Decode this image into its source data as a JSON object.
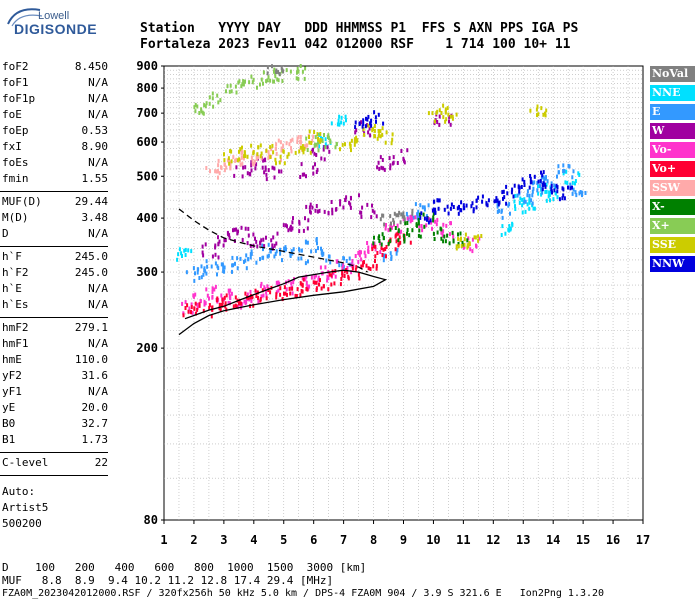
{
  "logo": {
    "brand_top": "Lowell",
    "brand_main": "DIGISONDE"
  },
  "header": {
    "line1": "Station   YYYY DAY   DDD HHMMSS P1  FFS S AXN PPS IGA PS",
    "line2": "Fortaleza 2023 Fev11 042 012000 RSF    1 714 100 10+ 11"
  },
  "params_group1": [
    {
      "name": "foF2",
      "value": "8.450"
    },
    {
      "name": "foF1",
      "value": "N/A"
    },
    {
      "name": "foF1p",
      "value": "N/A"
    },
    {
      "name": "foE",
      "value": "N/A"
    },
    {
      "name": "foEp",
      "value": "0.53"
    },
    {
      "name": "fxI",
      "value": "8.90"
    },
    {
      "name": "foEs",
      "value": "N/A"
    },
    {
      "name": "fmin",
      "value": "1.55"
    }
  ],
  "params_group2": [
    {
      "name": "MUF(D)",
      "value": "29.44"
    },
    {
      "name": "M(D)",
      "value": "3.48"
    },
    {
      "name": "D",
      "value": "N/A"
    }
  ],
  "params_group3": [
    {
      "name": "h`F",
      "value": "245.0"
    },
    {
      "name": "h`F2",
      "value": "245.0"
    },
    {
      "name": "h`E",
      "value": "N/A"
    },
    {
      "name": "h`Es",
      "value": "N/A"
    }
  ],
  "params_group4": [
    {
      "name": "hmF2",
      "value": "279.1"
    },
    {
      "name": "hmF1",
      "value": "N/A"
    },
    {
      "name": "hmE",
      "value": "110.0"
    },
    {
      "name": "yF2",
      "value": "31.6"
    },
    {
      "name": "yF1",
      "value": "N/A"
    },
    {
      "name": "yE",
      "value": "20.0"
    },
    {
      "name": "B0",
      "value": "32.7"
    },
    {
      "name": "B1",
      "value": "1.73"
    }
  ],
  "c_level": {
    "name": "C-level",
    "value": "22"
  },
  "auto": {
    "label": "Auto:",
    "software": "Artist5",
    "version": "500200"
  },
  "legend": [
    {
      "label": "NoVal",
      "color": "#808080"
    },
    {
      "label": "NNE",
      "color": "#00e0ff"
    },
    {
      "label": "E",
      "color": "#3399ff"
    },
    {
      "label": "W",
      "color": "#a000a0"
    },
    {
      "label": "Vo-",
      "color": "#ff33cc"
    },
    {
      "label": "Vo+",
      "color": "#ff0033"
    },
    {
      "label": "SSW",
      "color": "#ffaaaa"
    },
    {
      "label": "X-",
      "color": "#008000"
    },
    {
      "label": "X+",
      "color": "#88cc55"
    },
    {
      "label": "SSE",
      "color": "#cccc00"
    },
    {
      "label": "NNW",
      "color": "#0000dd"
    }
  ],
  "chart_data": {
    "type": "scatter",
    "title": "",
    "xlabel": "",
    "ylabel": "",
    "xlim": [
      1,
      17
    ],
    "ylim": [
      80,
      900
    ],
    "y_scale": "log",
    "x_ticks": [
      1,
      2,
      3,
      4,
      5,
      6,
      7,
      8,
      9,
      10,
      11,
      12,
      13,
      14,
      15,
      16,
      17
    ],
    "y_ticks": [
      80,
      200,
      300,
      400,
      500,
      600,
      700,
      800,
      900
    ],
    "grid": true,
    "legend_position": "right",
    "series": [
      {
        "name": "NNE",
        "color": "#00e0ff",
        "points": [
          [
            12.5,
            380
          ],
          [
            12.9,
            440
          ],
          [
            13.2,
            430
          ],
          [
            13.6,
            470
          ],
          [
            14.0,
            460
          ],
          [
            14.6,
            500
          ],
          [
            1.7,
            330
          ],
          [
            6.4,
            610
          ],
          [
            6.8,
            690
          ]
        ]
      },
      {
        "name": "E",
        "color": "#3399ff",
        "points": [
          [
            2.0,
            300
          ],
          [
            2.5,
            310
          ],
          [
            3.0,
            305
          ],
          [
            3.5,
            320
          ],
          [
            4.0,
            330
          ],
          [
            4.5,
            340
          ],
          [
            5.0,
            335
          ],
          [
            5.5,
            330
          ],
          [
            6.0,
            350
          ],
          [
            6.5,
            330
          ],
          [
            7.0,
            320
          ],
          [
            8.6,
            330
          ],
          [
            9.2,
            410
          ],
          [
            9.6,
            420
          ],
          [
            12.4,
            420
          ],
          [
            13.0,
            450
          ],
          [
            13.4,
            480
          ],
          [
            13.8,
            490
          ],
          [
            14.4,
            520
          ],
          [
            14.8,
            470
          ]
        ]
      },
      {
        "name": "W",
        "color": "#a000a0",
        "points": [
          [
            2.5,
            340
          ],
          [
            3.0,
            360
          ],
          [
            3.5,
            370
          ],
          [
            4.0,
            360
          ],
          [
            4.5,
            355
          ],
          [
            5.0,
            380
          ],
          [
            5.5,
            390
          ],
          [
            6.0,
            420
          ],
          [
            6.6,
            430
          ],
          [
            7.2,
            440
          ],
          [
            7.8,
            420
          ],
          [
            8.3,
            540
          ],
          [
            8.8,
            560
          ],
          [
            6.2,
            570
          ],
          [
            5.8,
            520
          ],
          [
            7.6,
            650
          ],
          [
            10.3,
            680
          ],
          [
            3.6,
            520
          ],
          [
            4.1,
            540
          ],
          [
            4.6,
            510
          ]
        ]
      },
      {
        "name": "Vo-",
        "color": "#ff33cc",
        "points": [
          [
            1.8,
            250
          ],
          [
            2.2,
            260
          ],
          [
            2.6,
            270
          ],
          [
            3.0,
            265
          ],
          [
            3.4,
            260
          ],
          [
            4.0,
            265
          ],
          [
            4.5,
            275
          ],
          [
            5.0,
            280
          ],
          [
            5.5,
            285
          ],
          [
            6.0,
            290
          ],
          [
            6.5,
            300
          ],
          [
            7.0,
            310
          ],
          [
            7.6,
            330
          ],
          [
            8.0,
            350
          ],
          [
            8.6,
            380
          ],
          [
            9.2,
            400
          ],
          [
            9.8,
            390
          ],
          [
            10.5,
            380
          ],
          [
            11.2,
            350
          ]
        ]
      },
      {
        "name": "Vo+",
        "color": "#ff0033",
        "points": [
          [
            1.9,
            245
          ],
          [
            2.3,
            248
          ],
          [
            2.8,
            255
          ],
          [
            3.2,
            258
          ],
          [
            3.7,
            262
          ],
          [
            4.2,
            266
          ],
          [
            4.8,
            270
          ],
          [
            5.3,
            276
          ],
          [
            5.8,
            282
          ],
          [
            6.3,
            287
          ],
          [
            6.8,
            295
          ],
          [
            7.3,
            302
          ],
          [
            7.8,
            318
          ],
          [
            8.2,
            335
          ],
          [
            8.6,
            355
          ],
          [
            9.0,
            360
          ]
        ]
      },
      {
        "name": "SSW",
        "color": "#ffaaaa",
        "points": [
          [
            3.0,
            540
          ],
          [
            3.4,
            550
          ],
          [
            3.8,
            560
          ],
          [
            4.2,
            555
          ],
          [
            4.6,
            565
          ],
          [
            5.0,
            590
          ],
          [
            5.4,
            600
          ],
          [
            5.8,
            610
          ],
          [
            2.6,
            520
          ]
        ]
      },
      {
        "name": "X-",
        "color": "#008000",
        "points": [
          [
            8.2,
            360
          ],
          [
            8.8,
            370
          ],
          [
            9.3,
            380
          ],
          [
            9.7,
            400
          ],
          [
            10.2,
            370
          ],
          [
            10.8,
            360
          ]
        ]
      },
      {
        "name": "X+",
        "color": "#88cc55",
        "points": [
          [
            2.2,
            730
          ],
          [
            2.6,
            760
          ],
          [
            3.3,
            820
          ],
          [
            3.8,
            830
          ],
          [
            4.4,
            850
          ],
          [
            4.9,
            870
          ],
          [
            5.4,
            880
          ],
          [
            6.0,
            600
          ],
          [
            6.6,
            610
          ]
        ]
      },
      {
        "name": "SSE",
        "color": "#cccc00",
        "points": [
          [
            3.2,
            560
          ],
          [
            3.7,
            575
          ],
          [
            4.3,
            580
          ],
          [
            4.9,
            560
          ],
          [
            5.6,
            590
          ],
          [
            6.1,
            620
          ],
          [
            7.1,
            600
          ],
          [
            7.6,
            630
          ],
          [
            8.0,
            640
          ],
          [
            8.4,
            620
          ],
          [
            10.1,
            700
          ],
          [
            10.5,
            710
          ],
          [
            11.0,
            350
          ],
          [
            11.3,
            360
          ],
          [
            13.5,
            720
          ]
        ]
      },
      {
        "name": "NNW",
        "color": "#0000dd",
        "points": [
          [
            9.8,
            410
          ],
          [
            10.2,
            430
          ],
          [
            10.7,
            420
          ],
          [
            11.1,
            430
          ],
          [
            11.6,
            440
          ],
          [
            12.2,
            450
          ],
          [
            12.6,
            470
          ],
          [
            13.1,
            490
          ],
          [
            13.4,
            500
          ],
          [
            13.9,
            480
          ],
          [
            14.4,
            460
          ],
          [
            7.6,
            670
          ],
          [
            8.0,
            690
          ]
        ]
      },
      {
        "name": "NoVal",
        "color": "#808080",
        "points": [
          [
            8.5,
            400
          ],
          [
            9.0,
            410
          ],
          [
            4.7,
            880
          ]
        ]
      }
    ],
    "profile_solid": [
      [
        1.5,
        215
      ],
      [
        2.0,
        228
      ],
      [
        2.5,
        238
      ],
      [
        3.0,
        244
      ],
      [
        4.0,
        252
      ],
      [
        5.0,
        259
      ],
      [
        6.0,
        265
      ],
      [
        7.0,
        270
      ],
      [
        8.0,
        278
      ],
      [
        8.4,
        288
      ],
      [
        8.0,
        293
      ],
      [
        7.5,
        300
      ],
      [
        7.0,
        303
      ],
      [
        6.5,
        300
      ],
      [
        6.0,
        296
      ],
      [
        5.5,
        292
      ],
      [
        5.0,
        282
      ],
      [
        4.5,
        274
      ],
      [
        4.0,
        266
      ],
      [
        3.5,
        258
      ],
      [
        3.0,
        250
      ],
      [
        2.5,
        245
      ],
      [
        2.0,
        238
      ],
      [
        1.7,
        234
      ]
    ],
    "profile_dashed": [
      [
        1.5,
        420
      ],
      [
        2.0,
        395
      ],
      [
        2.5,
        375
      ],
      [
        3.0,
        360
      ],
      [
        3.5,
        352
      ],
      [
        4.0,
        345
      ],
      [
        5.0,
        335
      ],
      [
        6.0,
        325
      ],
      [
        7.0,
        315
      ],
      [
        7.5,
        308
      ],
      [
        7.8,
        300
      ]
    ],
    "lower_axis": {
      "D_label": "D",
      "D_values": [
        "100",
        "200",
        "400",
        "600",
        "800",
        "1000",
        "1500",
        "3000"
      ],
      "D_unit": "[km]",
      "MUF_label": "MUF",
      "MUF_values": [
        "8.8",
        "8.9",
        "9.4",
        "10.2",
        "11.2",
        "12.8",
        "17.4",
        "29.4"
      ],
      "MUF_unit": "[MHz]"
    }
  },
  "bottom": {
    "file_info": "FZA0M_2023042012000.RSF / 320fx256h 50 kHz 5.0 km / DPS-4 FZA0M 904 / 3.9 S 321.6 E   Ion2Png 1.3.20"
  }
}
